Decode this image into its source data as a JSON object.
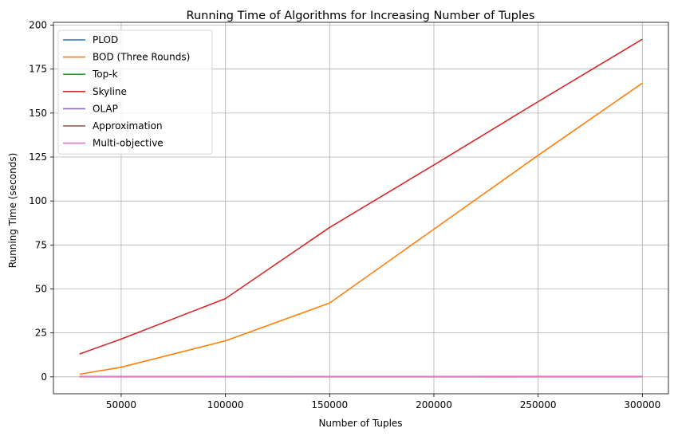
{
  "chart_data": {
    "type": "line",
    "title": "Running Time of Algorithms for Increasing Number of Tuples",
    "xlabel": "Number of Tuples",
    "ylabel": "Running Time (seconds)",
    "x": [
      30000,
      50000,
      100000,
      150000,
      200000,
      250000,
      300000
    ],
    "xlim": [
      17500,
      312500
    ],
    "ylim": [
      -9.6,
      201.6
    ],
    "xticks": [
      50000,
      100000,
      150000,
      200000,
      250000,
      300000
    ],
    "yticks": [
      0,
      25,
      50,
      75,
      100,
      125,
      150,
      175,
      200
    ],
    "grid": true,
    "legend_position": "top-left",
    "series": [
      {
        "name": "PLOD",
        "color": "#1f77b4",
        "values": [
          0.05,
          0.06,
          0.08,
          0.1,
          0.12,
          0.14,
          0.16
        ]
      },
      {
        "name": "BOD (Three Rounds)",
        "color": "#ff7f0e",
        "values": [
          1.5,
          5.5,
          20.5,
          42,
          84,
          126,
          167
        ]
      },
      {
        "name": "Top-k",
        "color": "#2ca02c",
        "values": [
          0.05,
          0.06,
          0.08,
          0.1,
          0.12,
          0.14,
          0.16
        ]
      },
      {
        "name": "Skyline",
        "color": "#d62728",
        "values": [
          13,
          21.5,
          44.5,
          85,
          120.5,
          156.5,
          192
        ]
      },
      {
        "name": "OLAP",
        "color": "#9467bd",
        "values": [
          0.1,
          0.12,
          0.15,
          0.18,
          0.2,
          0.22,
          0.25
        ]
      },
      {
        "name": "Approximation",
        "color": "#8c564b",
        "values": [
          0.1,
          0.12,
          0.15,
          0.18,
          0.2,
          0.22,
          0.25
        ]
      },
      {
        "name": "Multi-objective",
        "color": "#e377c2",
        "values": [
          0.15,
          0.17,
          0.2,
          0.22,
          0.25,
          0.27,
          0.3
        ]
      }
    ]
  }
}
